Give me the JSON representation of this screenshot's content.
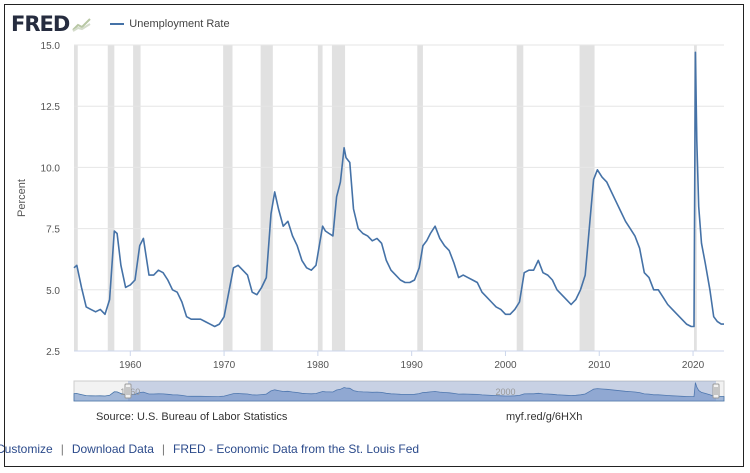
{
  "header": {
    "logo_text": "FRED",
    "logo_icon": "line-chart-icon",
    "series_label": "Unemployment Rate",
    "series_color": "#4572a7"
  },
  "chart_data": {
    "type": "line",
    "title": "",
    "series_name": "Unemployment Rate",
    "xlabel": "",
    "ylabel": "Percent",
    "xlim": [
      1954.0,
      2023.3
    ],
    "ylim": [
      2.5,
      15.0
    ],
    "yticks": [
      2.5,
      5.0,
      7.5,
      10.0,
      12.5,
      15.0
    ],
    "ytick_labels": [
      "2.5",
      "5.0",
      "7.5",
      "10.0",
      "12.5",
      "15.0"
    ],
    "xticks": [
      1960,
      1970,
      1980,
      1990,
      2000,
      2010,
      2020
    ],
    "xtick_labels": [
      "1960",
      "1970",
      "1980",
      "1990",
      "2000",
      "2010",
      "2020"
    ],
    "grid": true,
    "line_color": "#4572a7",
    "recession_color": "#e1e1e1",
    "recessions": [
      [
        1953.6,
        1954.4
      ],
      [
        1957.6,
        1958.3
      ],
      [
        1960.3,
        1961.1
      ],
      [
        1969.9,
        1970.9
      ],
      [
        1973.9,
        1975.2
      ],
      [
        1980.0,
        1980.5
      ],
      [
        1981.5,
        1982.9
      ],
      [
        1990.6,
        1991.2
      ],
      [
        2001.2,
        2001.9
      ],
      [
        2007.9,
        2009.5
      ],
      [
        2020.1,
        2020.4
      ]
    ],
    "x": [
      1954.0,
      1954.3,
      1954.8,
      1955.3,
      1955.8,
      1956.3,
      1956.8,
      1957.3,
      1957.8,
      1958.3,
      1958.6,
      1959.0,
      1959.5,
      1960.0,
      1960.5,
      1961.0,
      1961.4,
      1962.0,
      1962.5,
      1963.0,
      1963.5,
      1964.0,
      1964.5,
      1965.0,
      1965.5,
      1966.0,
      1966.5,
      1967.0,
      1967.5,
      1968.0,
      1968.5,
      1969.0,
      1969.5,
      1970.0,
      1970.5,
      1971.0,
      1971.5,
      1972.0,
      1972.5,
      1973.0,
      1973.5,
      1974.0,
      1974.5,
      1975.0,
      1975.4,
      1975.8,
      1976.3,
      1976.8,
      1977.3,
      1977.8,
      1978.3,
      1978.8,
      1979.3,
      1979.8,
      1980.2,
      1980.5,
      1980.8,
      1981.2,
      1981.6,
      1982.0,
      1982.4,
      1982.8,
      1983.0,
      1983.4,
      1983.8,
      1984.3,
      1984.8,
      1985.3,
      1985.8,
      1986.3,
      1986.8,
      1987.3,
      1987.8,
      1988.3,
      1988.8,
      1989.3,
      1989.8,
      1990.3,
      1990.8,
      1991.2,
      1991.6,
      1992.0,
      1992.5,
      1993.0,
      1993.5,
      1994.0,
      1994.5,
      1995.0,
      1995.5,
      1996.0,
      1996.5,
      1997.0,
      1997.5,
      1998.0,
      1998.5,
      1999.0,
      1999.5,
      2000.0,
      2000.5,
      2001.0,
      2001.5,
      2002.0,
      2002.5,
      2003.0,
      2003.5,
      2004.0,
      2004.5,
      2005.0,
      2005.5,
      2006.0,
      2006.5,
      2007.0,
      2007.5,
      2008.0,
      2008.5,
      2009.0,
      2009.4,
      2009.8,
      2010.3,
      2010.8,
      2011.3,
      2011.8,
      2012.3,
      2012.8,
      2013.3,
      2013.8,
      2014.3,
      2014.8,
      2015.3,
      2015.8,
      2016.3,
      2016.8,
      2017.3,
      2017.8,
      2018.3,
      2018.8,
      2019.3,
      2019.8,
      2020.1,
      2020.25,
      2020.4,
      2020.6,
      2020.9,
      2021.3,
      2021.8,
      2022.2,
      2022.6,
      2023.0,
      2023.3
    ],
    "values": [
      5.9,
      6.0,
      5.1,
      4.3,
      4.2,
      4.1,
      4.2,
      4.0,
      4.6,
      7.4,
      7.3,
      6.0,
      5.1,
      5.2,
      5.4,
      6.8,
      7.1,
      5.6,
      5.6,
      5.8,
      5.7,
      5.4,
      5.0,
      4.9,
      4.5,
      3.9,
      3.8,
      3.8,
      3.8,
      3.7,
      3.6,
      3.5,
      3.6,
      3.9,
      4.9,
      5.9,
      6.0,
      5.8,
      5.6,
      4.9,
      4.8,
      5.1,
      5.5,
      8.1,
      9.0,
      8.3,
      7.6,
      7.8,
      7.2,
      6.8,
      6.2,
      5.9,
      5.8,
      6.0,
      6.9,
      7.6,
      7.4,
      7.3,
      7.2,
      8.8,
      9.4,
      10.8,
      10.4,
      10.2,
      8.3,
      7.5,
      7.3,
      7.2,
      7.0,
      7.1,
      6.9,
      6.2,
      5.8,
      5.6,
      5.4,
      5.3,
      5.3,
      5.4,
      5.9,
      6.8,
      7.0,
      7.3,
      7.6,
      7.1,
      6.8,
      6.6,
      6.1,
      5.5,
      5.6,
      5.5,
      5.4,
      5.3,
      4.9,
      4.7,
      4.5,
      4.3,
      4.2,
      4.0,
      4.0,
      4.2,
      4.5,
      5.7,
      5.8,
      5.8,
      6.2,
      5.7,
      5.6,
      5.4,
      5.0,
      4.8,
      4.6,
      4.4,
      4.6,
      5.0,
      5.6,
      7.8,
      9.5,
      9.9,
      9.6,
      9.4,
      9.0,
      8.6,
      8.2,
      7.8,
      7.5,
      7.2,
      6.7,
      5.7,
      5.5,
      5.0,
      5.0,
      4.7,
      4.4,
      4.2,
      4.0,
      3.8,
      3.6,
      3.5,
      3.5,
      14.7,
      11.1,
      8.4,
      6.9,
      6.1,
      5.0,
      3.9,
      3.7,
      3.6,
      3.6
    ],
    "navigator_year_labels": [
      "1960",
      "2000"
    ]
  },
  "footer": {
    "source": "Source: U.S. Bureau of Labor Statistics",
    "short_url": "myf.red/g/6HXh",
    "links": [
      "Customize",
      "Download Data",
      "FRED - Economic Data from the St. Louis Fed"
    ],
    "separator": "|"
  }
}
